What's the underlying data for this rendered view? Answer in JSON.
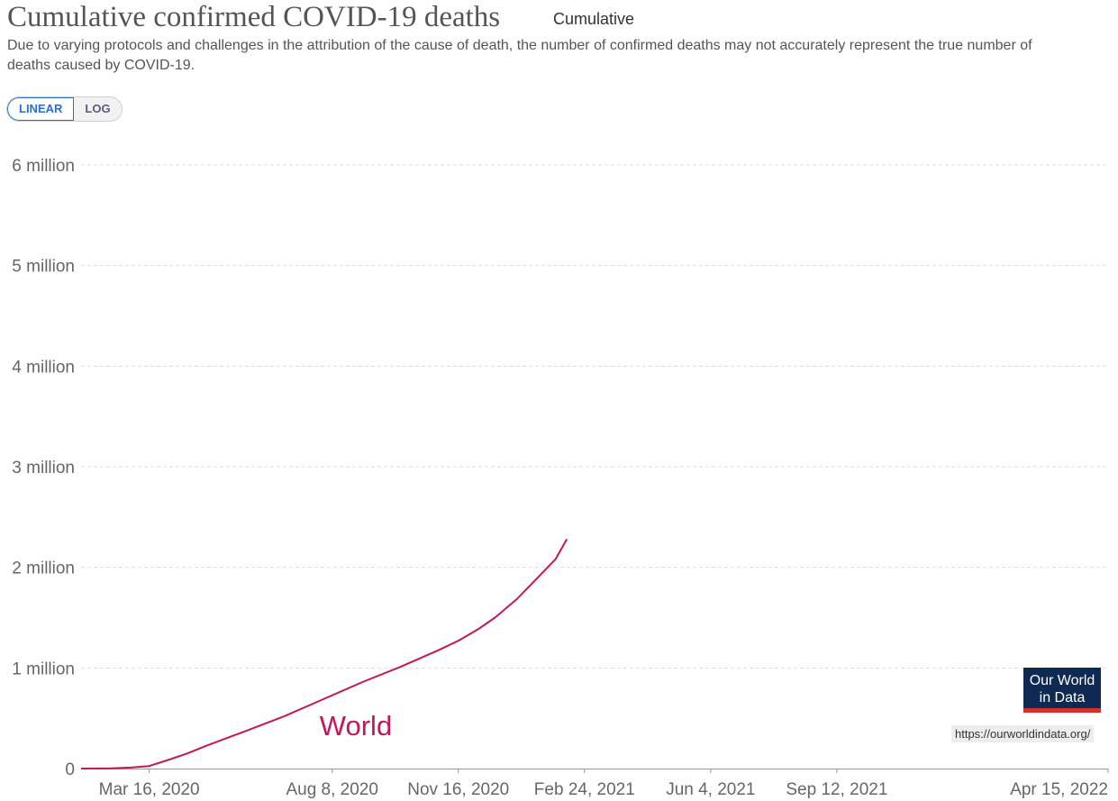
{
  "header": {
    "title": "Cumulative confirmed COVID-19 deaths",
    "view_label": "Cumulative",
    "subtitle": "Due to varying protocols and challenges in the attribution of the cause of death, the number of confirmed deaths may not accurately represent the true number of deaths caused by COVID-19."
  },
  "controls": {
    "scale_options": [
      "LINEAR",
      "LOG"
    ],
    "selected_scale": "LINEAR"
  },
  "branding": {
    "logo_text": "Our World in Data",
    "source_url": "https://ourworldindata.org/"
  },
  "colors": {
    "series": "#c2185b",
    "logo_bg": "#0e2a53",
    "logo_accent": "#d6302b",
    "active_toggle": "#2a6fc9"
  },
  "chart_data": {
    "type": "line",
    "title": "Cumulative confirmed COVID-19 deaths",
    "x_type": "date",
    "xlim": [
      "2020-01-22",
      "2022-04-15"
    ],
    "ylim": [
      0,
      6000000
    ],
    "grid": true,
    "y_ticks": [
      {
        "value": 0,
        "label": "0"
      },
      {
        "value": 1000000,
        "label": "1 million"
      },
      {
        "value": 2000000,
        "label": "2 million"
      },
      {
        "value": 3000000,
        "label": "3 million"
      },
      {
        "value": 4000000,
        "label": "4 million"
      },
      {
        "value": 5000000,
        "label": "5 million"
      },
      {
        "value": 6000000,
        "label": "6 million"
      }
    ],
    "x_ticks": [
      {
        "value": "2020-03-16",
        "label": "Mar 16, 2020"
      },
      {
        "value": "2020-08-08",
        "label": "Aug 8, 2020"
      },
      {
        "value": "2020-11-16",
        "label": "Nov 16, 2020"
      },
      {
        "value": "2021-02-24",
        "label": "Feb 24, 2021"
      },
      {
        "value": "2021-06-04",
        "label": "Jun 4, 2021"
      },
      {
        "value": "2021-09-12",
        "label": "Sep 12, 2021"
      },
      {
        "value": "2022-04-15",
        "label": "Apr 15, 2022"
      }
    ],
    "series": [
      {
        "name": "World",
        "x": [
          "2020-01-22",
          "2020-02-15",
          "2020-03-01",
          "2020-03-16",
          "2020-04-01",
          "2020-04-15",
          "2020-05-01",
          "2020-06-01",
          "2020-07-01",
          "2020-08-01",
          "2020-09-01",
          "2020-10-01",
          "2020-11-01",
          "2020-11-16",
          "2020-12-01",
          "2020-12-15",
          "2021-01-01",
          "2021-01-15",
          "2021-02-01",
          "2021-02-10"
        ],
        "y": [
          0,
          2500,
          10000,
          25000,
          90000,
          150000,
          230000,
          375000,
          520000,
          690000,
          860000,
          1010000,
          1180000,
          1270000,
          1380000,
          1500000,
          1680000,
          1860000,
          2080000,
          2280000
        ]
      }
    ]
  }
}
